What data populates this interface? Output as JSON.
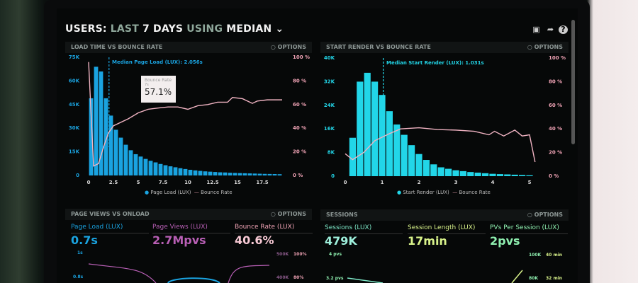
{
  "header": {
    "title_parts": [
      "USERS:",
      "LAST",
      "7 DAYS",
      "USING",
      "MEDIAN"
    ],
    "icons": [
      "monitor-icon",
      "share-icon",
      "help-icon"
    ]
  },
  "colors": {
    "blue": "#1aa3e0",
    "cyan": "#22d6e8",
    "pink": "#f0a3b5",
    "purple": "#b85fb5",
    "green": "#7de8c8",
    "lime": "#d8f28a"
  },
  "panels": {
    "load_time": {
      "title": "LOAD TIME VS BOUNCE RATE",
      "options": "OPTIONS",
      "annotation": "Median Page Load (LUX): 2.056s",
      "tooltip": {
        "label": "Bounce Rate",
        "x": "7s",
        "value": "57.1%"
      },
      "legend": [
        "Page Load (LUX)",
        "Bounce Rate"
      ]
    },
    "start_render": {
      "title": "START RENDER VS BOUNCE RATE",
      "options": "OPTIONS",
      "annotation": "Median Start Render (LUX): 1.031s",
      "legend": [
        "Start Render (LUX)",
        "Bounce Rate"
      ]
    },
    "page_views": {
      "title": "PAGE VIEWS VS ONLOAD",
      "options": "OPTIONS",
      "metrics": [
        {
          "label": "Page Load (LUX)",
          "value": "0.7s"
        },
        {
          "label": "Page Views (LUX)",
          "value": "2.7Mpvs"
        },
        {
          "label": "Bounce Rate (LUX)",
          "value": "40.6%"
        }
      ],
      "axis": {
        "left": [
          "1s",
          "0.8s"
        ],
        "right1": [
          "500K",
          "400K"
        ],
        "right2": [
          "100%",
          "80%"
        ]
      }
    },
    "sessions": {
      "title": "SESSIONS",
      "options": "OPTIONS",
      "metrics": [
        {
          "label": "Sessions (LUX)",
          "value": "479K"
        },
        {
          "label": "Session Length (LUX)",
          "value": "17min"
        },
        {
          "label": "PVs Per Session (LUX)",
          "value": "2pvs"
        }
      ],
      "axis": {
        "left": [
          "4 pvs",
          "3.2 pvs"
        ],
        "right1": [
          "100K",
          "80K"
        ],
        "right2": [
          "40 min",
          "32 min"
        ]
      }
    }
  },
  "chart_data": [
    {
      "type": "bar",
      "title": "LOAD TIME VS BOUNCE RATE",
      "x_ticks": [
        "0",
        "2.5",
        "5",
        "7.5",
        "10",
        "12.5",
        "15",
        "17.5"
      ],
      "y_ticks": [
        "0",
        "15K",
        "30K",
        "45K",
        "60K",
        "75K"
      ],
      "y2_ticks": [
        "0 %",
        "20 %",
        "40 %",
        "60 %",
        "80 %",
        "100 %"
      ],
      "ylim": [
        0,
        75000
      ],
      "y2lim": [
        0,
        100
      ],
      "xlim": [
        0,
        19.5
      ],
      "bin_width": 0.5,
      "x_start": 0,
      "median": 2.056,
      "series": [
        {
          "name": "Page Load (LUX)",
          "type": "bar",
          "values": [
            49000,
            69000,
            66000,
            49000,
            38000,
            29000,
            24000,
            19500,
            16000,
            13500,
            12000,
            10500,
            9300,
            8300,
            7300,
            6500,
            5800,
            5200,
            4600,
            4100,
            3600,
            3200,
            2900,
            2600,
            2400,
            2200,
            2000,
            1900,
            1700,
            1600,
            1500,
            1400,
            1300,
            1200,
            1100,
            1000,
            950,
            900,
            800
          ]
        },
        {
          "name": "Bounce Rate",
          "type": "line",
          "points": [
            [
              0,
              96
            ],
            [
              0.5,
              8
            ],
            [
              1,
              10
            ],
            [
              1.5,
              24
            ],
            [
              2,
              36
            ],
            [
              2.5,
              42
            ],
            [
              4,
              48
            ],
            [
              5,
              53
            ],
            [
              6,
              56
            ],
            [
              7,
              57.1
            ],
            [
              8,
              58
            ],
            [
              9,
              58
            ],
            [
              10,
              56
            ],
            [
              11,
              59
            ],
            [
              12,
              60
            ],
            [
              13,
              62
            ],
            [
              14,
              62
            ],
            [
              14.5,
              66
            ],
            [
              15.5,
              65
            ],
            [
              16.5,
              61
            ],
            [
              17,
              63
            ],
            [
              18,
              64
            ],
            [
              19.5,
              64
            ]
          ]
        }
      ]
    },
    {
      "type": "bar",
      "title": "START RENDER VS BOUNCE RATE",
      "x_ticks": [
        "0",
        "1",
        "2",
        "3",
        "4",
        "5"
      ],
      "y_ticks": [
        "0",
        "8K",
        "16K",
        "24K",
        "32K",
        "40K"
      ],
      "y2_ticks": [
        "0 %",
        "20 %",
        "40 %",
        "60 %",
        "80 %",
        "100 %"
      ],
      "ylim": [
        0,
        40000
      ],
      "y2lim": [
        0,
        100
      ],
      "xlim": [
        0,
        5.2
      ],
      "bin_width": 0.2,
      "x_start": 0.1,
      "median": 1.031,
      "series": [
        {
          "name": "Start Render (LUX)",
          "type": "bar",
          "values": [
            13000,
            32000,
            35000,
            32000,
            27500,
            22000,
            17500,
            14000,
            10500,
            7500,
            5500,
            4000,
            3000,
            2500,
            2000,
            1700,
            1400,
            1200,
            1000,
            800,
            700,
            600,
            500,
            400,
            300
          ]
        },
        {
          "name": "Bounce Rate",
          "type": "line",
          "points": [
            [
              0,
              19
            ],
            [
              0.2,
              14
            ],
            [
              0.5,
              20
            ],
            [
              0.8,
              30
            ],
            [
              1.2,
              36
            ],
            [
              1.5,
              40
            ],
            [
              2,
              41
            ],
            [
              2.5,
              39.5
            ],
            [
              3,
              39
            ],
            [
              3.5,
              38
            ],
            [
              3.9,
              35
            ],
            [
              4.05,
              38
            ],
            [
              4.3,
              34
            ],
            [
              4.6,
              39
            ],
            [
              4.8,
              34
            ],
            [
              5,
              35
            ],
            [
              5.15,
              12
            ]
          ]
        }
      ]
    }
  ]
}
